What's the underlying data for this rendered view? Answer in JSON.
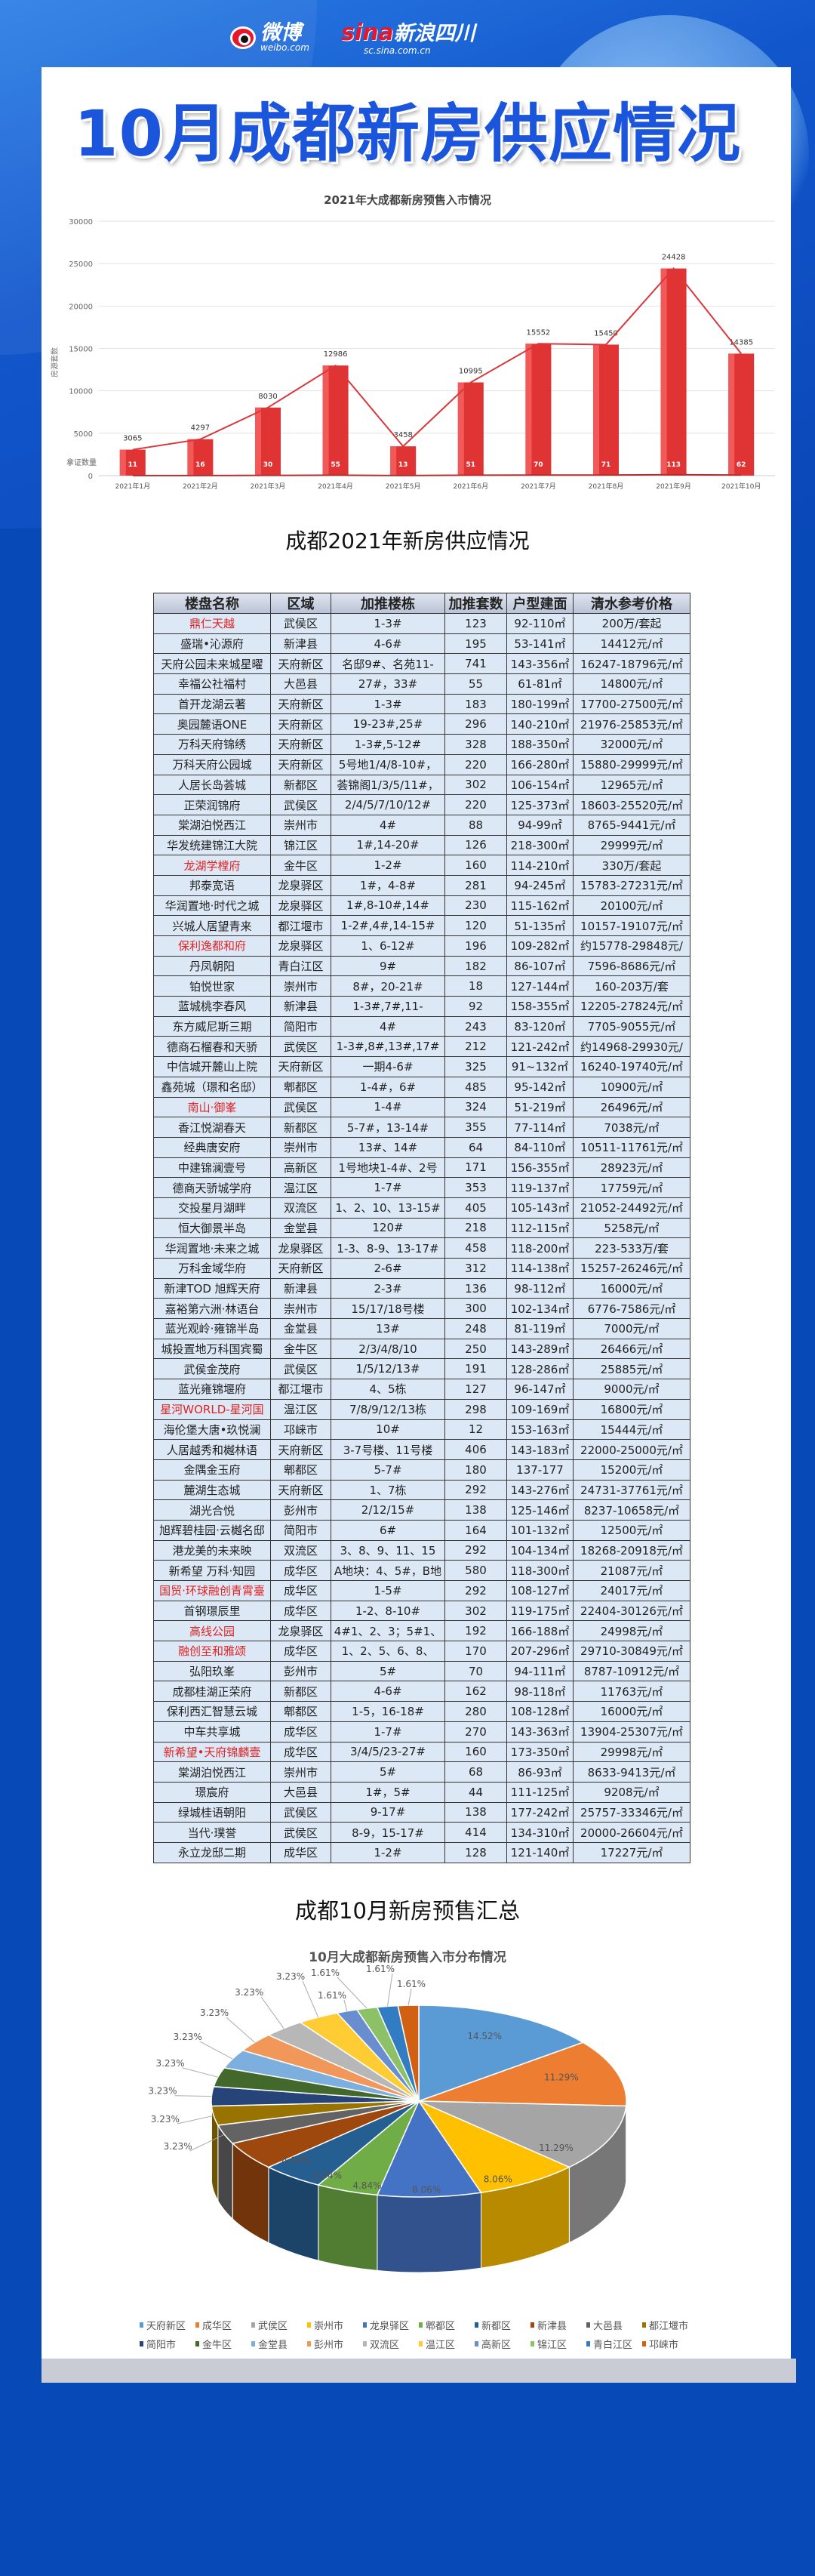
{
  "header": {
    "weibo": "微博",
    "weibo_url": "weibo.com",
    "sina": "sina",
    "sina_name": "新浪四川",
    "sina_url": "sc.sina.com.cn"
  },
  "title": "10月成都新房供应情况",
  "bar_section": {
    "chart_data": {
      "type": "bar",
      "title": "2021年大成都新房预售入市情况",
      "ylabel": "房源套数",
      "count_label": "拿证数量",
      "categories": [
        "2021年1月",
        "2021年2月",
        "2021年3月",
        "2021年4月",
        "2021年5月",
        "2021年6月",
        "2021年7月",
        "2021年8月",
        "2021年9月",
        "2021年10月"
      ],
      "series": [
        {
          "name": "房源套数",
          "values": [
            3065,
            4297,
            8030,
            12986,
            3458,
            10995,
            15552,
            15450,
            24428,
            14385
          ]
        },
        {
          "name": "拿证数量",
          "values": [
            11,
            16,
            30,
            55,
            13,
            51,
            70,
            71,
            113,
            62
          ]
        }
      ],
      "ylim": [
        0,
        30000
      ],
      "yticks": [
        0,
        5000,
        10000,
        15000,
        20000,
        25000,
        30000
      ],
      "grid": true,
      "colors": {
        "bar": "#e03434",
        "line": "#d9383a"
      }
    }
  },
  "table_section": {
    "title": "成都2021年新房供应情况",
    "headers": [
      "楼盘名称",
      "区域",
      "加推楼栋",
      "加推套数",
      "户型建面",
      "清水参考价格"
    ],
    "highlight_color": "#e32222",
    "rows": [
      [
        "鼎仁天越",
        "武侯区",
        "1-3#",
        "123",
        "92-110㎡",
        "200万/套起",
        true
      ],
      [
        "盛瑞•沁源府",
        "新津县",
        "4-6#",
        "195",
        "53-141㎡",
        "14412元/㎡",
        false
      ],
      [
        "天府公园未来城星曜",
        "天府新区",
        "名邸9#、名苑11-",
        "741",
        "143-356㎡",
        "16247-18796元/㎡",
        false
      ],
      [
        "幸福公社福村",
        "大邑县",
        "27#，33#",
        "55",
        "61-81㎡",
        "14800元/㎡",
        false
      ],
      [
        "首开龙湖云著",
        "天府新区",
        "1-3#",
        "183",
        "180-199㎡",
        "17700-27500元/㎡",
        false
      ],
      [
        "奥园麓语ONE",
        "天府新区",
        "19-23#,25#",
        "296",
        "140-210㎡",
        "21976-25853元/㎡",
        false
      ],
      [
        "万科天府锦绣",
        "天府新区",
        "1-3#,5-12#",
        "328",
        "188-350㎡",
        "32000元/㎡",
        false
      ],
      [
        "万科天府公园城",
        "天府新区",
        "5号地1/4/8-10#，",
        "220",
        "166-280㎡",
        "15880-29999元/㎡",
        false
      ],
      [
        "人居长岛荟城",
        "新都区",
        "荟锦阁1/3/5/11#，",
        "302",
        "106-154㎡",
        "12965元/㎡",
        false
      ],
      [
        "正荣润锦府",
        "武侯区",
        "2/4/5/7/10/12#",
        "220",
        "125-373㎡",
        "18603-25520元/㎡",
        false
      ],
      [
        "棠湖泊悦西江",
        "崇州市",
        "4#",
        "88",
        "94-99㎡",
        "8765-9441元/㎡",
        false
      ],
      [
        "华发统建锦江大院",
        "锦江区",
        "1#,14-20#",
        "126",
        "218-300㎡",
        "29999元/㎡",
        false
      ],
      [
        "龙湖学樘府",
        "金牛区",
        "1-2#",
        "160",
        "114-210㎡",
        "330万/套起",
        true
      ],
      [
        "邦泰宽语",
        "龙泉驿区",
        "1#，4-8#",
        "281",
        "94-245㎡",
        "15783-27231元/㎡",
        false
      ],
      [
        "华润置地·时代之城",
        "龙泉驿区",
        "1#,8-10#,14#",
        "230",
        "115-162㎡",
        "20100元/㎡",
        false
      ],
      [
        "兴城人居望青来",
        "都江堰市",
        "1-2#,4#,14-15#",
        "120",
        "51-135㎡",
        "10157-19107元/㎡",
        false
      ],
      [
        "保利逸都和府",
        "龙泉驿区",
        "1、6-12#",
        "196",
        "109-282㎡",
        "约15778-29848元/",
        true
      ],
      [
        "丹凤朝阳",
        "青白江区",
        "9#",
        "182",
        "86-107㎡",
        "7596-8686元/㎡",
        false
      ],
      [
        "铂悦世家",
        "崇州市",
        "8#，20-21#",
        "18",
        "127-144㎡",
        "160-203万/套",
        false
      ],
      [
        "蓝城桃李春风",
        "新津县",
        "1-3#,7#,11-",
        "92",
        "158-355㎡",
        "12205-27824元/㎡",
        false
      ],
      [
        "东方威尼斯三期",
        "简阳市",
        "4#",
        "243",
        "83-120㎡",
        "7705-9055元/㎡",
        false
      ],
      [
        "德商石榴春和天骄",
        "武侯区",
        "1-3#,8#,13#,17#",
        "212",
        "121-242㎡",
        "约14968-29930元/",
        false
      ],
      [
        "中信城开麓山上院",
        "天府新区",
        "一期4-6#",
        "325",
        "91~132㎡",
        "16240-19740元/㎡",
        false
      ],
      [
        "鑫苑城（璟和名邸）",
        "郫都区",
        "1-4#，6#",
        "485",
        "95-142㎡",
        "10900元/㎡",
        false
      ],
      [
        "南山·御峯",
        "武侯区",
        "1-4#",
        "324",
        "51-219㎡",
        "26496元/㎡",
        true
      ],
      [
        "香江悦湖春天",
        "新都区",
        "5-7#，13-14#",
        "355",
        "77-114㎡",
        "7038元/㎡",
        false
      ],
      [
        "经典唐安府",
        "崇州市",
        "13#、14#",
        "64",
        "84-110㎡",
        "10511-11761元/㎡",
        false
      ],
      [
        "中建锦澜壹号",
        "高新区",
        "1号地块1-4#、2号",
        "171",
        "156-355㎡",
        "28923元/㎡",
        false
      ],
      [
        "德商天骄城学府",
        "温江区",
        "1-7#",
        "353",
        "119-137㎡",
        "17759元/㎡",
        false
      ],
      [
        "交投星月湖畔",
        "双流区",
        "1、2、10、13-15#",
        "405",
        "105-143㎡",
        "21052-24492元/㎡",
        false
      ],
      [
        "恒大御景半岛",
        "金堂县",
        "120#",
        "218",
        "112-115㎡",
        "5258元/㎡",
        false
      ],
      [
        "华润置地·未来之城",
        "龙泉驿区",
        "1-3、8-9、13-17#",
        "458",
        "118-200㎡",
        "223-533万/套",
        false
      ],
      [
        "万科金域华府",
        "天府新区",
        "2-6#",
        "312",
        "114-138㎡",
        "15257-26246元/㎡",
        false
      ],
      [
        "新津TOD 旭辉天府",
        "新津县",
        "2-3#",
        "136",
        "98-112㎡",
        "16000元/㎡",
        false
      ],
      [
        "嘉裕第六洲·林语台",
        "崇州市",
        "15/17/18号楼",
        "300",
        "102-134㎡",
        "6776-7586元/㎡",
        false
      ],
      [
        "蓝光观岭·雍锦半岛",
        "金堂县",
        "13#",
        "248",
        "81-119㎡",
        "7000元/㎡",
        false
      ],
      [
        "城投置地万科国宾蜀",
        "金牛区",
        "2/3/4/8/10",
        "250",
        "143-289㎡",
        "26466元/㎡",
        false
      ],
      [
        "武侯金茂府",
        "武侯区",
        "1/5/12/13#",
        "191",
        "128-286㎡",
        "25885元/㎡",
        false
      ],
      [
        "蓝光雍锦堰府",
        "都江堰市",
        "4、5栋",
        "127",
        "96-147㎡",
        "9000元/㎡",
        false
      ],
      [
        "星河WORLD-星河国",
        "温江区",
        "7/8/9/12/13栋",
        "298",
        "109-169㎡",
        "16800元/㎡",
        true
      ],
      [
        "海伦堡大唐•玖悦澜",
        "邛崃市",
        "10#",
        "12",
        "153-163㎡",
        "15444元/㎡",
        false
      ],
      [
        "人居越秀和樾林语",
        "天府新区",
        "3-7号楼、11号楼",
        "406",
        "143-183㎡",
        "22000-25000元/㎡",
        false
      ],
      [
        "金隅金玉府",
        "郫都区",
        "5-7#",
        "180",
        "137-177",
        "15200元/㎡",
        false
      ],
      [
        "麓湖生态城",
        "天府新区",
        "1、7栋",
        "292",
        "143-276㎡",
        "24731-37761元/㎡",
        false
      ],
      [
        "湖光合悦",
        "彭州市",
        "2/12/15#",
        "138",
        "125-146㎡",
        "8237-10658元/㎡",
        false
      ],
      [
        "旭辉碧桂园·云樾名邸",
        "简阳市",
        "6#",
        "164",
        "101-132㎡",
        "12500元/㎡",
        false
      ],
      [
        "港龙美的未来映",
        "双流区",
        "3、8、9、11、15",
        "292",
        "104-134㎡",
        "18268-20918元/㎡",
        false
      ],
      [
        "新希望 万科·知园",
        "成华区",
        "A地块：4、5#，B地",
        "580",
        "118-300㎡",
        "21087元/㎡",
        false
      ],
      [
        "国贸·环球融创青霄臺",
        "成华区",
        "1-5#",
        "292",
        "108-127㎡",
        "24017元/㎡",
        true
      ],
      [
        "首钢璟辰里",
        "成华区",
        "1-2、8-10#",
        "302",
        "119-175㎡",
        "22404-30126元/㎡",
        false
      ],
      [
        "高线公园",
        "龙泉驿区",
        "4#1、2、3；5#1、",
        "192",
        "166-188㎡",
        "24998元/㎡",
        true
      ],
      [
        "融创至和雅颂",
        "成华区",
        "1、2、5、6、8、",
        "170",
        "207-296㎡",
        "29710-30849元/㎡",
        true
      ],
      [
        "弘阳玖峯",
        "彭州市",
        "5#",
        "70",
        "94-111㎡",
        "8787-10912元/㎡",
        false
      ],
      [
        "成都桂湖正荣府",
        "新都区",
        "4-6#",
        "162",
        "98-118㎡",
        "11763元/㎡",
        false
      ],
      [
        "保利西汇智慧云城",
        "郫都区",
        "1-5，16-18#",
        "280",
        "108-128㎡",
        "16000元/㎡",
        false
      ],
      [
        "中车共享城",
        "成华区",
        "1-7#",
        "270",
        "143-363㎡",
        "13904-25307元/㎡",
        false
      ],
      [
        "新希望•天府锦麟壹",
        "成华区",
        "3/4/5/23-27#",
        "160",
        "173-350㎡",
        "29998元/㎡",
        true
      ],
      [
        "棠湖泊悦西江",
        "崇州市",
        "5#",
        "68",
        "86-93㎡",
        "8633-9413元/㎡",
        false
      ],
      [
        "璟宸府",
        "大邑县",
        "1#，5#",
        "44",
        "111-125㎡",
        "9208元/㎡",
        false
      ],
      [
        "绿城桂语朝阳",
        "武侯区",
        "9-17#",
        "138",
        "177-242㎡",
        "25757-33346元/㎡",
        false
      ],
      [
        "当代·璞誉",
        "武侯区",
        "8-9，15-17#",
        "414",
        "134-310㎡",
        "20000-26604元/㎡",
        false
      ],
      [
        "永立龙邸二期",
        "成华区",
        "1-2#",
        "128",
        "121-140㎡",
        "17227元/㎡",
        false
      ]
    ]
  },
  "pie_section": {
    "title": "成都10月新房预售汇总",
    "chart_data": {
      "type": "pie",
      "title": "10月大成都新房预售入市分布情况",
      "legend": "bottom",
      "categories": [
        "天府新区",
        "成华区",
        "武侯区",
        "崇州市",
        "龙泉驿区",
        "郫都区",
        "新都区",
        "新津县",
        "大邑县",
        "都江堰市",
        "简阳市",
        "金牛区",
        "金堂县",
        "彭州市",
        "双流区",
        "温江区",
        "高新区",
        "锦江区",
        "青白江区",
        "邛崃市"
      ],
      "values": [
        14.52,
        11.29,
        11.29,
        8.06,
        8.06,
        4.84,
        4.84,
        4.84,
        3.23,
        3.23,
        3.23,
        3.23,
        3.23,
        3.23,
        3.23,
        3.23,
        1.61,
        1.61,
        1.61,
        1.61
      ],
      "labels": [
        "14.52%",
        "11.29%",
        "11.29%",
        "8.06%",
        "8.06%",
        "4.84%",
        "4.84%",
        "4.84%",
        "3.23%",
        "3.23%",
        "3.23%",
        "3.23%",
        "3.23%",
        "3.23%",
        "3.23%",
        "3.23%",
        "1.61%",
        "1.61%",
        "1.61%",
        "1.61%"
      ],
      "colors": [
        "#5b9bd5",
        "#ed7d31",
        "#a5a5a5",
        "#ffc000",
        "#4472c4",
        "#70ad47",
        "#255e91",
        "#9e480e",
        "#636363",
        "#997300",
        "#264478",
        "#43682b",
        "#7cafdd",
        "#f1975a",
        "#b7b7b7",
        "#ffcd33",
        "#698ed0",
        "#8cc168",
        "#327dc2",
        "#d26012"
      ]
    }
  }
}
